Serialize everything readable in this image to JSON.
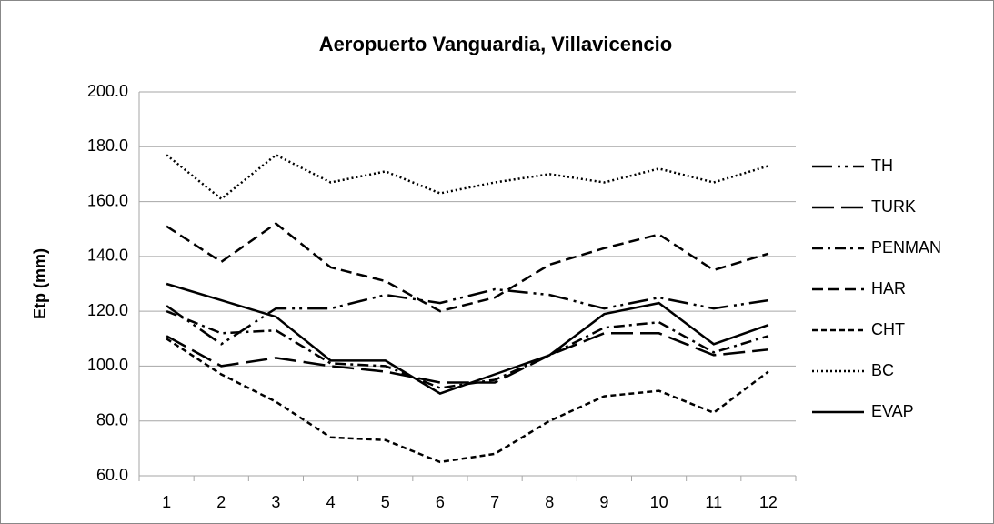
{
  "chart_data": {
    "type": "line",
    "title": "Aeropuerto Vanguardia, Villavicencio",
    "y_label": "Etp (mm)",
    "categories": [
      "1",
      "2",
      "3",
      "4",
      "5",
      "6",
      "7",
      "8",
      "9",
      "10",
      "11",
      "12"
    ],
    "ylim": [
      60,
      200
    ],
    "yticks": [
      {
        "value": 60,
        "label": "60.0"
      },
      {
        "value": 80,
        "label": "80.0"
      },
      {
        "value": 100,
        "label": "100.0"
      },
      {
        "value": 120,
        "label": "120.0"
      },
      {
        "value": 140,
        "label": "140.0"
      },
      {
        "value": 160,
        "label": "160.0"
      },
      {
        "value": 180,
        "label": "180.0"
      },
      {
        "value": 200,
        "label": "200.0"
      }
    ],
    "grid": true,
    "legend": "right",
    "series": [
      {
        "name": "TH",
        "color": "#000000",
        "dash": "22,6,3,5,3,6",
        "values": [
          122,
          108,
          121,
          121,
          126,
          123,
          128,
          126,
          121,
          125,
          121,
          124
        ]
      },
      {
        "name": "TURK",
        "color": "#000000",
        "dash": "24,8",
        "values": [
          111,
          100,
          103,
          100,
          98,
          94,
          94,
          104,
          112,
          112,
          104,
          106
        ]
      },
      {
        "name": "PENMAN",
        "color": "#000000",
        "dash": "12,5,3,5",
        "values": [
          120,
          112,
          113,
          101,
          100,
          92,
          95,
          104,
          114,
          116,
          105,
          111
        ]
      },
      {
        "name": "HAR",
        "color": "#000000",
        "dash": "12,6",
        "values": [
          151,
          138,
          152,
          136,
          131,
          120,
          125,
          137,
          143,
          148,
          135,
          141
        ]
      },
      {
        "name": "CHT",
        "color": "#000000",
        "dash": "6,4",
        "values": [
          110,
          97,
          87,
          74,
          73,
          65,
          68,
          80,
          89,
          91,
          83,
          98
        ]
      },
      {
        "name": "BC",
        "color": "#000000",
        "dash": "2,3",
        "values": [
          177,
          161,
          177,
          167,
          171,
          163,
          167,
          170,
          167,
          172,
          167,
          173
        ]
      },
      {
        "name": "EVAP",
        "color": "#000000",
        "dash": "none",
        "values": [
          130,
          124,
          118,
          102,
          102,
          90,
          97,
          104,
          119,
          123,
          108,
          115
        ]
      }
    ]
  }
}
